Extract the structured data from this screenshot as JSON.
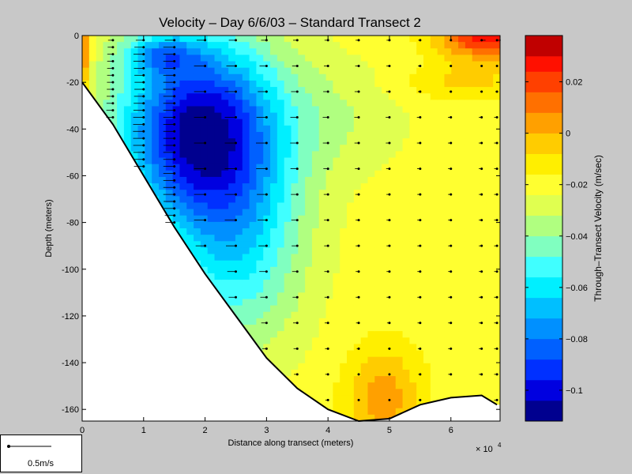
{
  "chart_data": {
    "type": "heatmap",
    "title": "Velocity – Day 6/6/03 – Standard Transect 2",
    "xlabel": "Distance along transect (meters)",
    "ylabel": "Depth (meters)",
    "x_multiplier_label": "× 10",
    "x_multiplier_exponent": "4",
    "xlim": [
      0,
      6.8
    ],
    "ylim": [
      -165,
      0
    ],
    "x_ticks": [
      0,
      1,
      2,
      3,
      4,
      5,
      6
    ],
    "y_ticks": [
      0,
      -20,
      -40,
      -60,
      -80,
      -100,
      -120,
      -140,
      -160
    ],
    "colorbar": {
      "label": "Through–Transect Velocity (m/sec)",
      "range": [
        -0.112,
        0.038
      ],
      "levels": [
        -0.112,
        -0.104,
        -0.096,
        -0.088,
        -0.08,
        -0.072,
        -0.064,
        -0.056,
        -0.048,
        -0.04,
        -0.032,
        -0.024,
        -0.016,
        -0.008,
        0.0,
        0.008,
        0.016,
        0.024,
        0.03,
        0.038
      ],
      "ticks": [
        -0.1,
        -0.08,
        -0.06,
        -0.04,
        -0.02,
        0,
        0.02
      ],
      "tick_labels": [
        "−0.1",
        "−0.08",
        "−0.06",
        "−0.04",
        "−0.02",
        "0",
        "0.02"
      ],
      "colors": [
        "#00008f",
        "#0000e0",
        "#0030ff",
        "#0060ff",
        "#0090ff",
        "#00bfff",
        "#00efff",
        "#40ffff",
        "#80ffc0",
        "#b0ff80",
        "#e0ff50",
        "#ffff30",
        "#ffef00",
        "#ffcc00",
        "#ffa000",
        "#ff7000",
        "#ff4000",
        "#ff1000",
        "#c00000"
      ]
    },
    "bottom_profile": [
      [
        0,
        -20
      ],
      [
        0.5,
        -38
      ],
      [
        1,
        -60
      ],
      [
        1.5,
        -82
      ],
      [
        2,
        -102
      ],
      [
        2.5,
        -120
      ],
      [
        3,
        -138
      ],
      [
        3.5,
        -151
      ],
      [
        4,
        -160
      ],
      [
        4.5,
        -165
      ],
      [
        5,
        -164
      ],
      [
        5.5,
        -158
      ],
      [
        6,
        -155
      ],
      [
        6.5,
        -154
      ],
      [
        6.75,
        -158
      ]
    ],
    "station_x": [
      0.5,
      1,
      1.5,
      2,
      2.5,
      3,
      3.5,
      4,
      4.5,
      5,
      5.5,
      6,
      6.5,
      6.75
    ],
    "vector_scale_label": "0.5m/s"
  }
}
